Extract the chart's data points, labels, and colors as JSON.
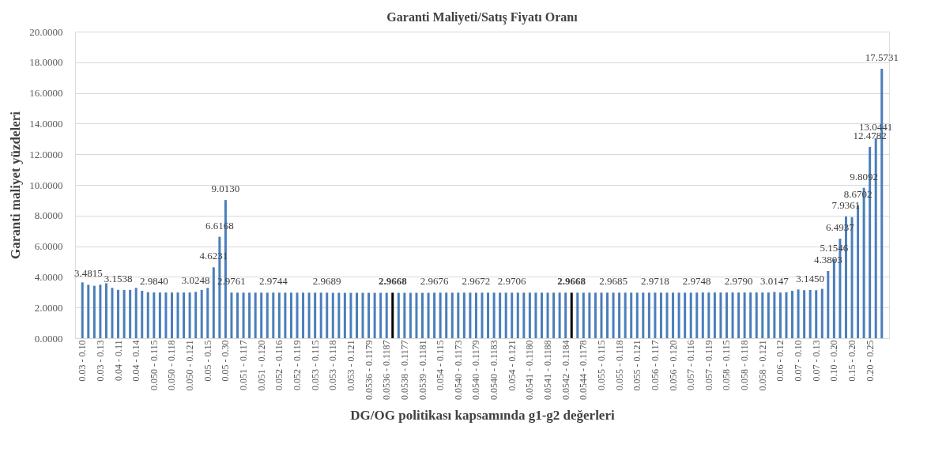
{
  "chart_data": {
    "type": "bar",
    "title": "Garanti Maliyeti/Satış Fiyatı Oranı",
    "xlabel": "DG/OG politikası kapsamında g1-g2 değerleri",
    "ylabel": "Garanti maliyet yüzdeleri",
    "categories": [
      "0.03 - 0.10",
      null,
      null,
      "0.03 - 0.13",
      null,
      null,
      "0.04 - 0.11",
      null,
      null,
      "0.04 - 0.14",
      null,
      null,
      "0.050 - 0.115",
      null,
      null,
      "0.050 - 0.118",
      null,
      null,
      "0.050 - 0.121",
      null,
      null,
      "0.05 - 0.15",
      null,
      null,
      "0.05 - 0.30",
      null,
      null,
      "0.051 - 0.117",
      null,
      null,
      "0.051 - 0.120",
      null,
      null,
      "0.052 - 0.116",
      null,
      null,
      "0.052 - 0.119",
      null,
      null,
      "0.053 - 0.115",
      null,
      null,
      "0.053 - 0.118",
      null,
      null,
      "0.053 - 0.121",
      null,
      null,
      "0.0536 - 0.1179",
      null,
      null,
      "0.0536 - 0.1187",
      null,
      null,
      "0.0538 - 0.1177",
      null,
      null,
      "0.0539 - 0.1181",
      null,
      null,
      "0.054 - 0.115",
      null,
      null,
      "0.0540 - 0.1173",
      null,
      null,
      "0.0540 - 0.1179",
      null,
      null,
      "0.0540 - 0.1183",
      null,
      null,
      "0.054 - 0.121",
      null,
      null,
      "0.0541 - 0.1180",
      null,
      null,
      "0.0541 - 0.1188",
      null,
      null,
      "0.0542 - 0.1184",
      null,
      null,
      "0.0544 - 0.1178",
      null,
      null,
      "0.055 - 0.115",
      null,
      null,
      "0.055 - 0.118",
      null,
      null,
      "0.055 - 0.121",
      null,
      null,
      "0.056 - 0.117",
      null,
      null,
      "0.056 - 0.120",
      null,
      null,
      "0.057 - 0.116",
      null,
      null,
      "0.057 - 0.119",
      null,
      null,
      "0.058 - 0.115",
      null,
      null,
      "0.058 - 0.118",
      null,
      null,
      "0.058 - 0.121",
      null,
      null,
      "0.06 - 0.12",
      null,
      null,
      "0.07 - 0.10",
      null,
      null,
      "0.07 - 0.13",
      null,
      null,
      "0.10 - 0.20",
      null,
      null,
      "0.15 - 0.20",
      null,
      null,
      "0.20 - 0.25",
      null,
      null
    ],
    "values": [
      3.64,
      3.4815,
      3.42,
      3.49,
      3.58,
      3.28,
      3.1538,
      3.15,
      3.15,
      3.28,
      3.09,
      3.0,
      2.984,
      2.98,
      2.98,
      2.98,
      2.98,
      2.98,
      2.98,
      3.0248,
      3.15,
      3.28,
      4.6231,
      6.6168,
      9.013,
      2.9761,
      2.97,
      2.97,
      2.97,
      2.97,
      2.97,
      2.97,
      2.9744,
      2.97,
      2.97,
      2.97,
      2.97,
      2.97,
      2.97,
      2.97,
      2.97,
      2.9689,
      2.96,
      2.96,
      2.96,
      2.96,
      2.96,
      2.96,
      2.96,
      2.96,
      2.96,
      2.96,
      2.9668,
      2.96,
      2.96,
      2.96,
      2.96,
      2.96,
      2.96,
      2.9676,
      2.97,
      2.97,
      2.97,
      2.97,
      2.97,
      2.97,
      2.9672,
      2.97,
      2.97,
      2.97,
      2.97,
      2.97,
      2.9706,
      2.97,
      2.97,
      2.97,
      2.97,
      2.97,
      2.97,
      2.97,
      2.97,
      2.97,
      2.9668,
      2.97,
      2.97,
      2.97,
      2.97,
      2.97,
      2.97,
      2.9685,
      2.97,
      2.97,
      2.97,
      2.97,
      2.97,
      2.97,
      2.9718,
      2.97,
      2.97,
      2.97,
      2.97,
      2.97,
      2.97,
      2.9748,
      2.98,
      2.98,
      2.98,
      2.98,
      2.98,
      2.98,
      2.979,
      2.98,
      2.98,
      2.98,
      2.98,
      2.98,
      3.0147,
      2.98,
      3.0,
      3.09,
      3.18,
      3.13,
      3.145,
      3.13,
      3.22,
      4.3803,
      5.1546,
      6.4937,
      7.9361,
      7.9,
      8.6702,
      9.8092,
      12.4782,
      13.0441,
      17.5731
    ],
    "value_labels": [
      null,
      "3.4815",
      null,
      null,
      null,
      null,
      "3.1538",
      null,
      null,
      null,
      null,
      null,
      "2.9840",
      null,
      null,
      null,
      null,
      null,
      null,
      "3.0248",
      null,
      null,
      "4.6231",
      "6.6168",
      "9.0130",
      "2.9761",
      null,
      null,
      null,
      null,
      null,
      null,
      "2.9744",
      null,
      null,
      null,
      null,
      null,
      null,
      null,
      null,
      "2.9689",
      null,
      null,
      null,
      null,
      null,
      null,
      null,
      null,
      null,
      null,
      "2.9668",
      null,
      null,
      null,
      null,
      null,
      null,
      "2.9676",
      null,
      null,
      null,
      null,
      null,
      null,
      "2.9672",
      null,
      null,
      null,
      null,
      null,
      "2.9706",
      null,
      null,
      null,
      null,
      null,
      null,
      null,
      null,
      null,
      "2.9668",
      null,
      null,
      null,
      null,
      null,
      null,
      "2.9685",
      null,
      null,
      null,
      null,
      null,
      null,
      "2.9718",
      null,
      null,
      null,
      null,
      null,
      null,
      "2.9748",
      null,
      null,
      null,
      null,
      null,
      null,
      "2.9790",
      null,
      null,
      null,
      null,
      null,
      "3.0147",
      null,
      null,
      null,
      null,
      null,
      "3.1450",
      null,
      null,
      "4.3803",
      "5.1546",
      "6.4937",
      "7.9361",
      null,
      "8.6702",
      "9.8092",
      "12.4782",
      "13.0441",
      "17.5731"
    ],
    "colors": [
      "#4a7ebb",
      "#4a7ebb",
      "#4a7ebb",
      "#4a7ebb",
      "#4a7ebb",
      "#4a7ebb",
      "#4a7ebb",
      "#4a7ebb",
      "#4a7ebb",
      "#4a7ebb",
      "#4a7ebb",
      "#4a7ebb",
      "#4a7ebb",
      "#4a7ebb",
      "#4a7ebb",
      "#4a7ebb",
      "#4a7ebb",
      "#4a7ebb",
      "#4a7ebb",
      "#4a7ebb",
      "#4a7ebb",
      "#4a7ebb",
      "#4a7ebb",
      "#4a7ebb",
      "#4a7ebb",
      "#4a7ebb",
      "#4a7ebb",
      "#4a7ebb",
      "#4a7ebb",
      "#4a7ebb",
      "#4a7ebb",
      "#4a7ebb",
      "#4a7ebb",
      "#4a7ebb",
      "#4a7ebb",
      "#4a7ebb",
      "#4a7ebb",
      "#4a7ebb",
      "#4a7ebb",
      "#4a7ebb",
      "#4a7ebb",
      "#4a7ebb",
      "#4a7ebb",
      "#4a7ebb",
      "#4a7ebb",
      "#4a7ebb",
      "#4a7ebb",
      "#4a7ebb",
      "#4a7ebb",
      "#4a7ebb",
      "#4a7ebb",
      "#4a7ebb",
      "#000000",
      "#4a7ebb",
      "#4a7ebb",
      "#4a7ebb",
      "#4a7ebb",
      "#4a7ebb",
      "#4a7ebb",
      "#4a7ebb",
      "#4a7ebb",
      "#4a7ebb",
      "#4a7ebb",
      "#4a7ebb",
      "#4a7ebb",
      "#4a7ebb",
      "#4a7ebb",
      "#4a7ebb",
      "#4a7ebb",
      "#4a7ebb",
      "#4a7ebb",
      "#4a7ebb",
      "#4a7ebb",
      "#4a7ebb",
      "#4a7ebb",
      "#4a7ebb",
      "#4a7ebb",
      "#4a7ebb",
      "#4a7ebb",
      "#4a7ebb",
      "#4a7ebb",
      "#4a7ebb",
      "#000000",
      "#4a7ebb",
      "#4a7ebb",
      "#4a7ebb",
      "#4a7ebb",
      "#4a7ebb",
      "#4a7ebb",
      "#4a7ebb",
      "#4a7ebb",
      "#4a7ebb",
      "#4a7ebb",
      "#4a7ebb",
      "#4a7ebb",
      "#4a7ebb",
      "#4a7ebb",
      "#4a7ebb",
      "#4a7ebb",
      "#4a7ebb",
      "#4a7ebb",
      "#4a7ebb",
      "#4a7ebb",
      "#4a7ebb",
      "#4a7ebb",
      "#4a7ebb",
      "#4a7ebb",
      "#4a7ebb",
      "#4a7ebb",
      "#4a7ebb",
      "#4a7ebb",
      "#4a7ebb",
      "#4a7ebb",
      "#4a7ebb",
      "#4a7ebb",
      "#4a7ebb",
      "#4a7ebb",
      "#4a7ebb",
      "#4a7ebb",
      "#4a7ebb",
      "#4a7ebb",
      "#4a7ebb",
      "#4a7ebb",
      "#4a7ebb",
      "#4a7ebb",
      "#4a7ebb",
      "#4a7ebb",
      "#4a7ebb",
      "#4a7ebb",
      "#4a7ebb",
      "#4a7ebb",
      "#4a7ebb",
      "#4a7ebb",
      "#4a7ebb",
      "#4a7ebb"
    ],
    "ylim": [
      0,
      20
    ],
    "yticks": [
      {
        "value": 0,
        "label": "0.0000"
      },
      {
        "value": 2,
        "label": "2.0000"
      },
      {
        "value": 4,
        "label": "4.0000"
      },
      {
        "value": 6,
        "label": "6.0000"
      },
      {
        "value": 8,
        "label": "8.0000"
      },
      {
        "value": 10,
        "label": "10.0000"
      },
      {
        "value": 12,
        "label": "12.0000"
      },
      {
        "value": 14,
        "label": "14.0000"
      },
      {
        "value": 16,
        "label": "16.0000"
      },
      {
        "value": 18,
        "label": "18.0000"
      },
      {
        "value": 20,
        "label": "20.0000"
      }
    ],
    "grid": "y"
  }
}
